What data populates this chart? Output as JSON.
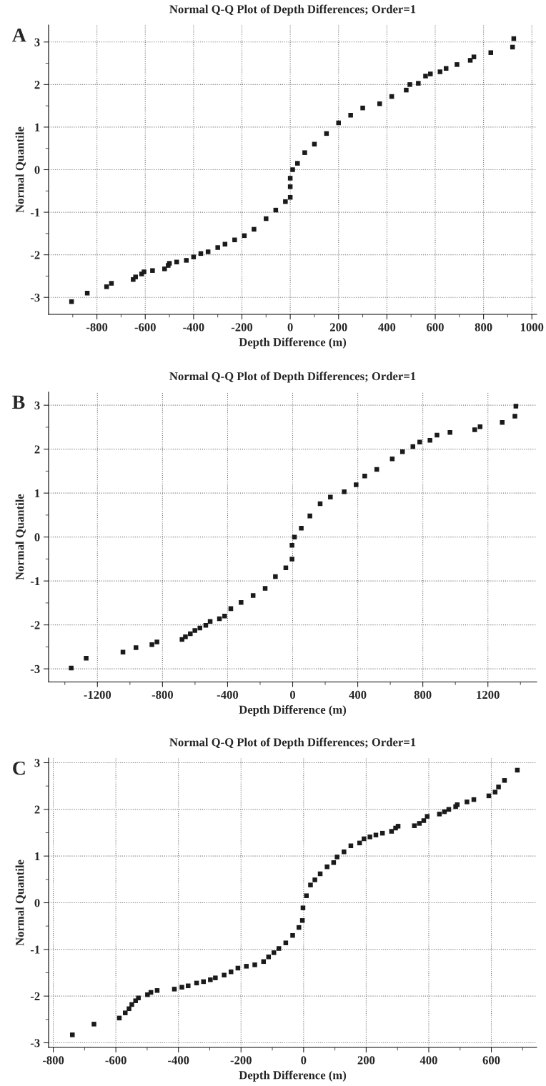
{
  "chart_data": [
    {
      "type": "scatter",
      "title": "Normal Q-Q Plot of Depth Differences; Order=1",
      "xlabel": "Depth Difference (m)",
      "ylabel": "Normal Quantile",
      "annotations": [
        "A"
      ],
      "marker": "square",
      "grid": true,
      "xlim": [
        -1000,
        1020
      ],
      "ylim": [
        -3.4,
        3.4
      ],
      "xticks": [
        {
          "value": -900,
          "label": null
        },
        -800,
        {
          "value": -700,
          "label": null
        },
        -600,
        {
          "value": -500,
          "label": null
        },
        -400,
        {
          "value": -300,
          "label": null
        },
        -200,
        {
          "value": -100,
          "label": null
        },
        0,
        {
          "value": 100,
          "label": null
        },
        200,
        {
          "value": 300,
          "label": null
        },
        400,
        {
          "value": 500,
          "label": null
        },
        600,
        {
          "value": 700,
          "label": null
        },
        800,
        {
          "value": 900,
          "label": null
        },
        1000
      ],
      "yticks": [
        -3,
        {
          "value": -2.5,
          "label": null
        },
        -2,
        {
          "value": -1.5,
          "label": null
        },
        -1,
        {
          "value": -0.5,
          "label": null
        },
        0,
        {
          "value": 0.5,
          "label": null
        },
        1,
        {
          "value": 1.5,
          "label": null
        },
        2,
        {
          "value": 2.5,
          "label": null
        },
        3
      ],
      "series": [
        {
          "color": "#1a1a1a",
          "x": [
            -905,
            -840,
            -760,
            -740,
            -650,
            -640,
            -615,
            -605,
            -570,
            -520,
            -505,
            -500,
            -470,
            -430,
            -400,
            -370,
            -340,
            -300,
            -270,
            -230,
            -190,
            -150,
            -100,
            -60,
            -20,
            0,
            0,
            0,
            10,
            30,
            60,
            100,
            150,
            200,
            250,
            300,
            370,
            420,
            480,
            495,
            530,
            560,
            580,
            620,
            645,
            690,
            745,
            760,
            830,
            920,
            925
          ],
          "values": [
            -3.1,
            -2.9,
            -2.75,
            -2.67,
            -2.58,
            -2.52,
            -2.45,
            -2.4,
            -2.37,
            -2.33,
            -2.25,
            -2.2,
            -2.17,
            -2.13,
            -2.05,
            -1.97,
            -1.93,
            -1.83,
            -1.75,
            -1.65,
            -1.55,
            -1.4,
            -1.15,
            -0.95,
            -0.75,
            -0.65,
            -0.4,
            -0.2,
            0,
            0.15,
            0.4,
            0.6,
            0.85,
            1.1,
            1.28,
            1.45,
            1.55,
            1.72,
            1.87,
            2.0,
            2.03,
            2.2,
            2.25,
            2.3,
            2.38,
            2.47,
            2.57,
            2.65,
            2.75,
            2.88,
            3.08
          ]
        }
      ]
    },
    {
      "type": "scatter",
      "title": "Normal Q-Q Plot of Depth Differences; Order=1",
      "xlabel": "Depth Difference (m)",
      "ylabel": "Normal Quantile",
      "annotations": [
        "B"
      ],
      "marker": "square",
      "grid": true,
      "xlim": [
        -1500,
        1500
      ],
      "ylim": [
        -3.3,
        3.3
      ],
      "xticks": [
        {
          "value": -1400,
          "label": null
        },
        -1200,
        {
          "value": -1000,
          "label": null
        },
        -800,
        {
          "value": -600,
          "label": null
        },
        -400,
        {
          "value": -200,
          "label": null
        },
        0,
        {
          "value": 200,
          "label": null
        },
        400,
        {
          "value": 600,
          "label": null
        },
        800,
        {
          "value": 1000,
          "label": null
        },
        1200,
        {
          "value": 1400,
          "label": null
        }
      ],
      "yticks": [
        -3,
        {
          "value": -2.5,
          "label": null
        },
        -2,
        {
          "value": -1.5,
          "label": null
        },
        -1,
        {
          "value": -0.5,
          "label": null
        },
        0,
        {
          "value": 0.5,
          "label": null
        },
        1,
        {
          "value": 1.5,
          "label": null
        },
        2,
        {
          "value": 2.5,
          "label": null
        },
        3
      ],
      "series": [
        {
          "color": "#1a1a1a",
          "x": [
            -1361,
            -1269,
            -1043,
            -963,
            -865,
            -834,
            -680,
            -659,
            -629,
            -601,
            -570,
            -534,
            -507,
            -450,
            -418,
            -380,
            -317,
            -243,
            -169,
            -106,
            -42,
            -4,
            -4,
            11,
            53,
            106,
            169,
            232,
            317,
            390,
            443,
            517,
            612,
            675,
            739,
            781,
            844,
            887,
            967,
            1119,
            1152,
            1288,
            1366,
            1372
          ],
          "values": [
            -2.98,
            -2.76,
            -2.62,
            -2.52,
            -2.45,
            -2.39,
            -2.33,
            -2.27,
            -2.2,
            -2.13,
            -2.07,
            -2.01,
            -1.92,
            -1.86,
            -1.8,
            -1.63,
            -1.49,
            -1.33,
            -1.17,
            -0.9,
            -0.7,
            -0.5,
            -0.19,
            0,
            0.2,
            0.48,
            0.76,
            0.91,
            1.03,
            1.19,
            1.39,
            1.54,
            1.78,
            1.94,
            2.06,
            2.16,
            2.2,
            2.32,
            2.38,
            2.44,
            2.51,
            2.61,
            2.75,
            2.98
          ]
        }
      ]
    },
    {
      "type": "scatter",
      "title": "Normal Q-Q Plot of Depth Differences; Order=1",
      "xlabel": "Depth Difference (m)",
      "ylabel": "Normal Quantile",
      "annotations": [
        "C"
      ],
      "marker": "square",
      "grid": true,
      "xlim": [
        -815,
        745
      ],
      "ylim": [
        -3.1,
        3.1
      ],
      "xticks": [
        -800,
        {
          "value": -700,
          "label": null
        },
        -600,
        {
          "value": -500,
          "label": null
        },
        -400,
        {
          "value": -300,
          "label": null
        },
        -200,
        {
          "value": -100,
          "label": null
        },
        0,
        {
          "value": 100,
          "label": null
        },
        200,
        {
          "value": 300,
          "label": null
        },
        400,
        {
          "value": 500,
          "label": null
        },
        600,
        {
          "value": 700,
          "label": null
        }
      ],
      "yticks": [
        -3,
        {
          "value": -2.5,
          "label": null
        },
        -2,
        {
          "value": -1.5,
          "label": null
        },
        -1,
        {
          "value": -0.5,
          "label": null
        },
        0,
        {
          "value": 0.5,
          "label": null
        },
        1,
        {
          "value": 1.5,
          "label": null
        },
        2,
        {
          "value": 2.5,
          "label": null
        },
        3
      ],
      "series": [
        {
          "color": "#1a1a1a",
          "x": [
            -739,
            -670,
            -589,
            -570,
            -558,
            -549,
            -537,
            -528,
            -499,
            -488,
            -468,
            -413,
            -389,
            -369,
            -342,
            -320,
            -298,
            -282,
            -254,
            -232,
            -210,
            -183,
            -156,
            -128,
            -112,
            -95,
            -79,
            -57,
            -35,
            -15,
            -4,
            -2,
            9,
            22,
            36,
            53,
            75,
            96,
            107,
            129,
            151,
            179,
            193,
            212,
            231,
            252,
            281,
            294,
            302,
            354,
            370,
            384,
            395,
            434,
            450,
            464,
            486,
            491,
            522,
            544,
            592,
            612,
            623,
            642,
            683
          ],
          "values": [
            -2.83,
            -2.6,
            -2.47,
            -2.36,
            -2.27,
            -2.18,
            -2.1,
            -2.04,
            -1.97,
            -1.92,
            -1.88,
            -1.85,
            -1.81,
            -1.78,
            -1.72,
            -1.69,
            -1.65,
            -1.61,
            -1.55,
            -1.48,
            -1.4,
            -1.36,
            -1.33,
            -1.26,
            -1.16,
            -1.07,
            -0.98,
            -0.86,
            -0.7,
            -0.53,
            -0.38,
            -0.11,
            0.15,
            0.38,
            0.49,
            0.62,
            0.77,
            0.86,
            0.98,
            1.09,
            1.22,
            1.28,
            1.37,
            1.41,
            1.45,
            1.49,
            1.53,
            1.6,
            1.64,
            1.65,
            1.7,
            1.76,
            1.85,
            1.9,
            1.95,
            2.0,
            2.06,
            2.1,
            2.16,
            2.21,
            2.29,
            2.37,
            2.48,
            2.62,
            2.84
          ]
        }
      ]
    }
  ]
}
